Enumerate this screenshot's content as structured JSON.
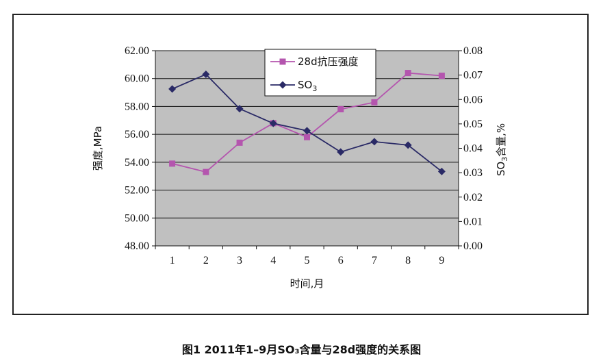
{
  "caption": "图1 2011年1–9月SO₃含量与28d强度的关系图",
  "chart_data": {
    "type": "line",
    "categories": [
      "1",
      "2",
      "3",
      "4",
      "5",
      "6",
      "7",
      "8",
      "9"
    ],
    "xlabel": "时间,月",
    "ylabel_left": "强度,MPa",
    "ylabel_right_prefix": "SO",
    "ylabel_right_sub": "3",
    "ylabel_right_suffix": "含量,%",
    "ylim_left": [
      48,
      62
    ],
    "ylim_right": [
      0,
      0.08
    ],
    "yticks_left": [
      "48.00",
      "50.00",
      "52.00",
      "54.00",
      "56.00",
      "58.00",
      "60.00",
      "62.00"
    ],
    "yticks_right": [
      "0.00",
      "0.01",
      "0.02",
      "0.03",
      "0.04",
      "0.05",
      "0.06",
      "0.07",
      "0.08"
    ],
    "grid": true,
    "legend_position": "top-center",
    "series": [
      {
        "name": "28d抗压强度",
        "axis": "left",
        "marker": "square",
        "color": "#b455ae",
        "values": [
          53.9,
          53.3,
          55.4,
          56.8,
          55.8,
          57.8,
          58.3,
          60.4,
          60.2
        ]
      },
      {
        "name_prefix": "SO",
        "name_sub": "3",
        "axis": "right",
        "marker": "diamond",
        "color": "#2a2a66",
        "values": [
          0.0643,
          0.0703,
          0.0562,
          0.0502,
          0.0472,
          0.0385,
          0.0427,
          0.0413,
          0.0305
        ]
      }
    ],
    "colors": {
      "plot_background": "#c0c0c0",
      "gridline": "#111111"
    }
  }
}
